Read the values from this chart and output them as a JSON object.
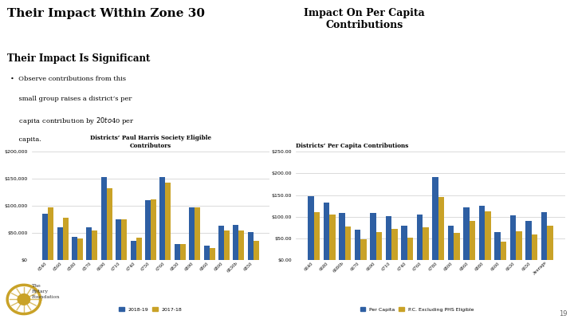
{
  "title": "Their Impact Within Zone 30",
  "subtitle": "Their Impact Is Significant",
  "right_title": "Impact On Per Capita\nContributions",
  "bullet_lines": [
    "•  Observe contributions from this",
    "    small group raises a district’s per",
    "    capita contribution by $20 to $40 per",
    "    capita."
  ],
  "bg_color": "#ffffff",
  "title_color": "#000000",
  "subtitle_color": "#000000",
  "blue_color": "#2e5fa3",
  "gold_color": "#c9a227",
  "chart1_title": "Districts’ Paul Harris Society Eligible\nContributors",
  "chart1_categories": [
    "6540",
    "6560",
    "6580",
    "6570",
    "6690",
    "6710",
    "6740",
    "6750",
    "6760",
    "6830",
    "6890",
    "6860",
    "6800",
    "6830b",
    "6850"
  ],
  "chart1_2018_19": [
    85000,
    60000,
    43000,
    60000,
    153000,
    75000,
    36000,
    110000,
    153000,
    30000,
    97000,
    26000,
    63000,
    65000,
    52000
  ],
  "chart1_2017_18": [
    97000,
    78000,
    40000,
    55000,
    132000,
    75000,
    42000,
    112000,
    143000,
    30000,
    98000,
    22000,
    54000,
    54000,
    35000
  ],
  "chart1_ylim": [
    0,
    200000
  ],
  "chart1_yticks": [
    0,
    50000,
    100000,
    150000,
    200000
  ],
  "chart1_legend": [
    "2018-19",
    "2017-18"
  ],
  "chart2_title": "Districts’ Per Capita Contributions",
  "chart2_categories": [
    "6640",
    "6680",
    "6680b",
    "6670",
    "6690",
    "6710",
    "6740",
    "6760",
    "6780",
    "6800",
    "6860",
    "6880",
    "6600",
    "6630",
    "6650",
    "Average"
  ],
  "chart2_per_capita": [
    147,
    133,
    109,
    70,
    109,
    101,
    79,
    105,
    192,
    79,
    121,
    126,
    64,
    103,
    90,
    110
  ],
  "chart2_excl": [
    110,
    105,
    78,
    48,
    65,
    72,
    51,
    75,
    145,
    62,
    91,
    113,
    42,
    67,
    59,
    80
  ],
  "chart2_ylim": [
    0,
    250
  ],
  "chart2_yticks": [
    0,
    50,
    100,
    150,
    200,
    250
  ],
  "chart2_legend": [
    "Per Capita",
    "P.C. Excluding PHS Eligible"
  ],
  "page_number": "19"
}
